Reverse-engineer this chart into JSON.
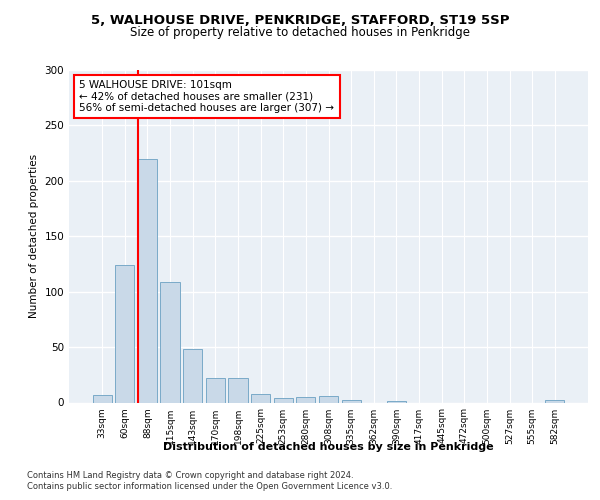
{
  "title_line1": "5, WALHOUSE DRIVE, PENKRIDGE, STAFFORD, ST19 5SP",
  "title_line2": "Size of property relative to detached houses in Penkridge",
  "xlabel": "Distribution of detached houses by size in Penkridge",
  "ylabel": "Number of detached properties",
  "bar_labels": [
    "33sqm",
    "60sqm",
    "88sqm",
    "115sqm",
    "143sqm",
    "170sqm",
    "198sqm",
    "225sqm",
    "253sqm",
    "280sqm",
    "308sqm",
    "335sqm",
    "362sqm",
    "390sqm",
    "417sqm",
    "445sqm",
    "472sqm",
    "500sqm",
    "527sqm",
    "555sqm",
    "582sqm"
  ],
  "bar_values": [
    7,
    124,
    220,
    109,
    48,
    22,
    22,
    8,
    4,
    5,
    6,
    2,
    0,
    1,
    0,
    0,
    0,
    0,
    0,
    0,
    2
  ],
  "bar_color": "#c9d9e8",
  "bar_edge_color": "#7aaac8",
  "property_line_bin": 2,
  "annotation_text": "5 WALHOUSE DRIVE: 101sqm\n← 42% of detached houses are smaller (231)\n56% of semi-detached houses are larger (307) →",
  "annotation_box_color": "white",
  "annotation_box_edge": "red",
  "vline_color": "red",
  "ylim": [
    0,
    300
  ],
  "yticks": [
    0,
    50,
    100,
    150,
    200,
    250,
    300
  ],
  "footer_line1": "Contains HM Land Registry data © Crown copyright and database right 2024.",
  "footer_line2": "Contains public sector information licensed under the Open Government Licence v3.0.",
  "bg_color": "#eaf0f6",
  "grid_color": "white"
}
